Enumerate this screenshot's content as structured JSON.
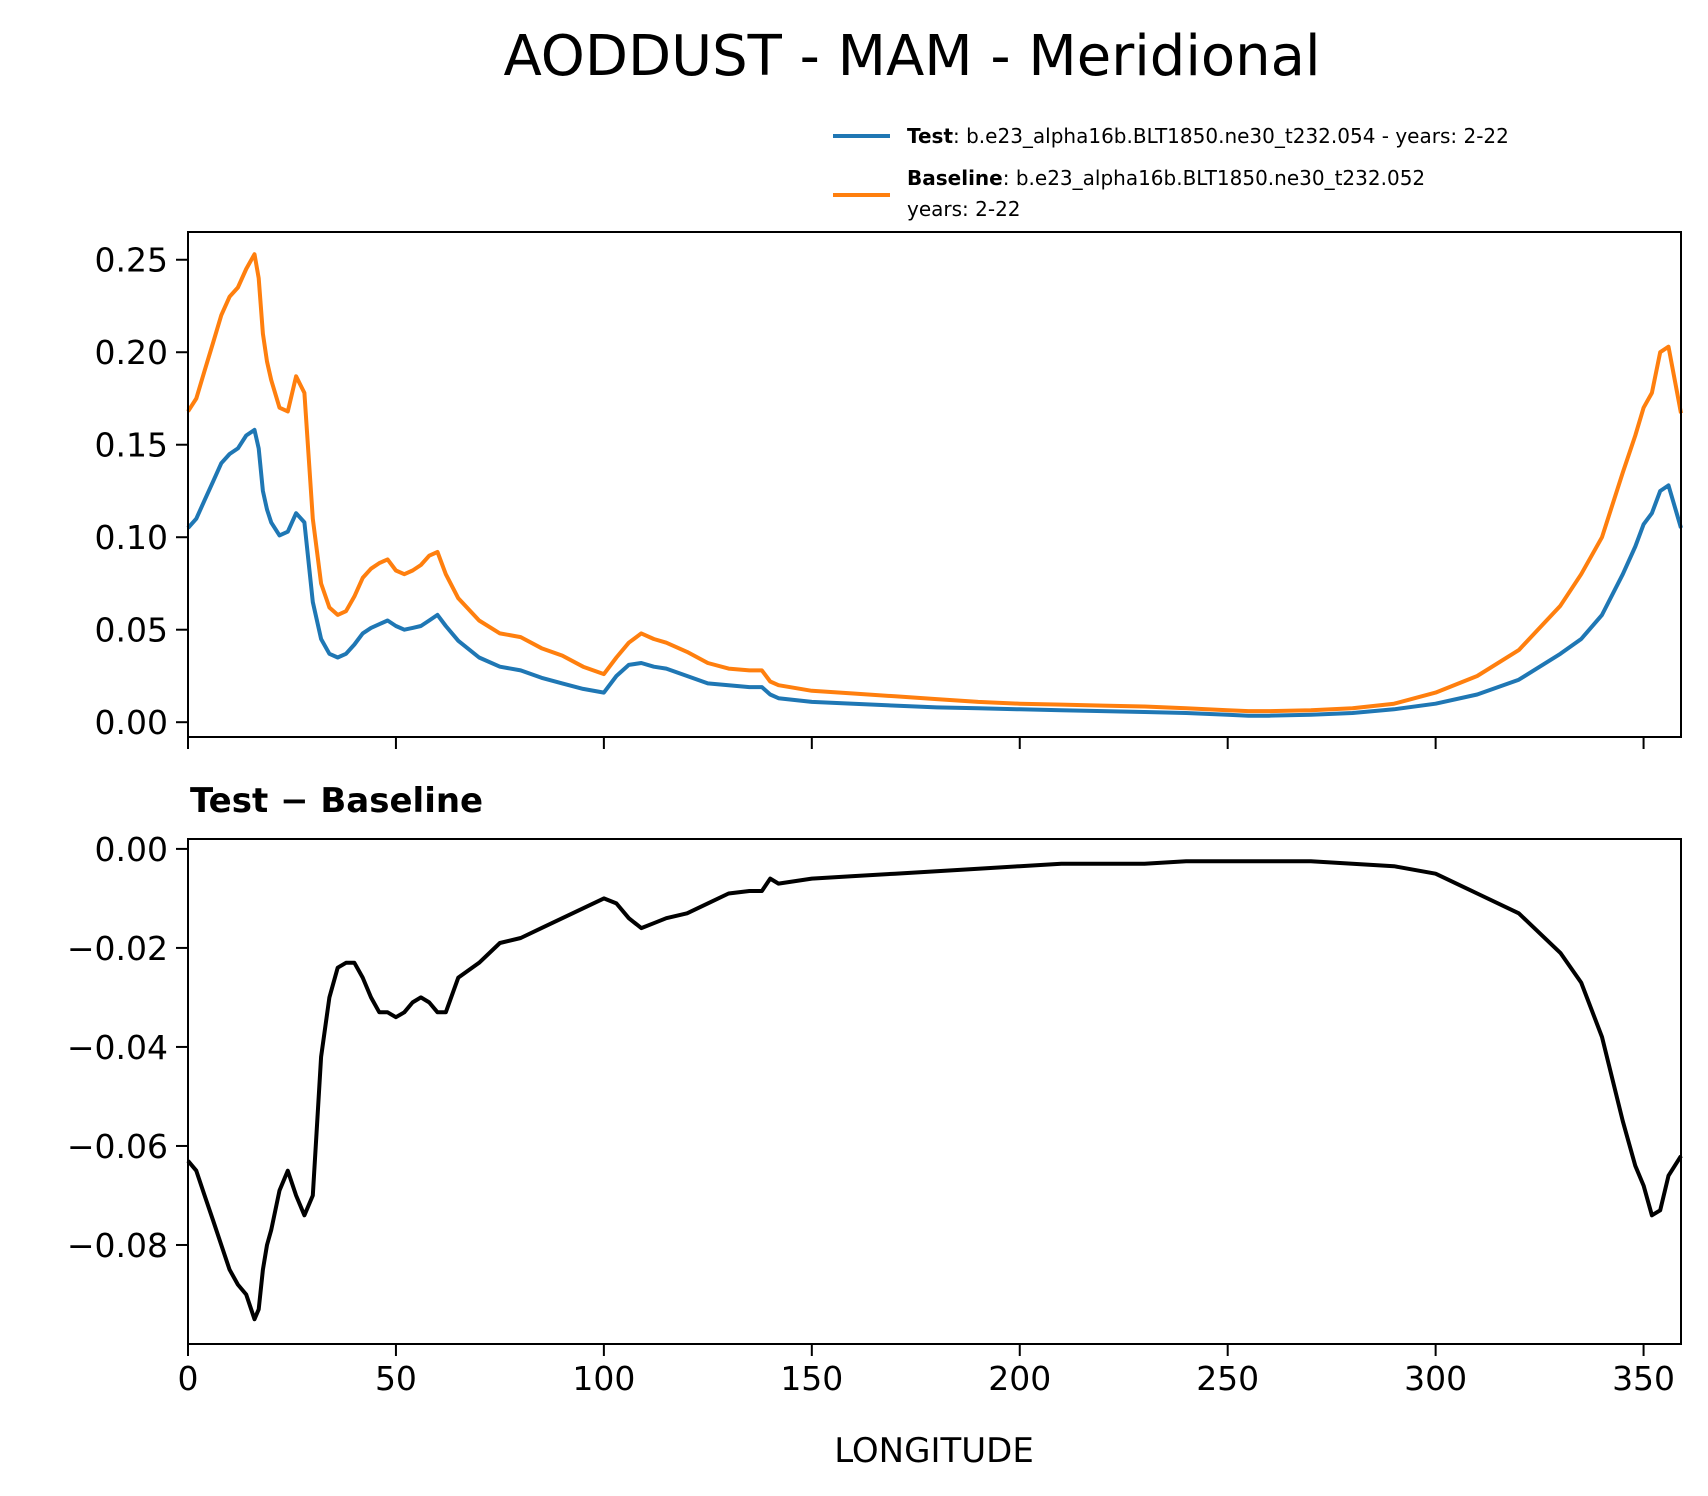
{
  "title": "AODDUST - MAM - Meridional",
  "legend": {
    "test": {
      "label": "Test",
      "text": ": b.e23_alpha16b.BLT1850.ne30_t232.054 - years: 2-22",
      "color": "#1f77b4"
    },
    "baseline": {
      "label": "Baseline",
      "text": ": b.e23_alpha16b.BLT1850.ne30_t232.052",
      "text2": "years: 2-22",
      "color": "#ff7f0e"
    }
  },
  "diff_title": "Test − Baseline",
  "xlabel": "LONGITUDE",
  "chart_data": [
    {
      "type": "line",
      "xlim": [
        0,
        359
      ],
      "ylim": [
        -0.008,
        0.265
      ],
      "xticks": [
        0,
        50,
        100,
        150,
        200,
        250,
        300,
        350
      ],
      "yticks": [
        0.0,
        0.05,
        0.1,
        0.15,
        0.2,
        0.25
      ],
      "ytick_labels": [
        "0.00",
        "0.05",
        "0.10",
        "0.15",
        "0.20",
        "0.25"
      ],
      "x": [
        0,
        2,
        4,
        6,
        8,
        10,
        12,
        14,
        16,
        17,
        18,
        19,
        20,
        22,
        24,
        26,
        28,
        30,
        32,
        34,
        36,
        38,
        40,
        42,
        44,
        46,
        48,
        50,
        52,
        54,
        56,
        58,
        60,
        62,
        65,
        70,
        75,
        80,
        85,
        90,
        95,
        100,
        103,
        106,
        109,
        112,
        115,
        120,
        125,
        130,
        135,
        138,
        140,
        142,
        150,
        160,
        170,
        180,
        190,
        200,
        210,
        220,
        230,
        240,
        250,
        255,
        260,
        270,
        280,
        290,
        300,
        310,
        320,
        330,
        335,
        340,
        345,
        348,
        350,
        352,
        354,
        356,
        359
      ],
      "series": [
        {
          "name": "Test",
          "color": "#1f77b4",
          "values": [
            0.105,
            0.11,
            0.12,
            0.13,
            0.14,
            0.145,
            0.148,
            0.155,
            0.158,
            0.148,
            0.125,
            0.115,
            0.108,
            0.101,
            0.103,
            0.113,
            0.108,
            0.065,
            0.045,
            0.037,
            0.035,
            0.037,
            0.042,
            0.048,
            0.051,
            0.053,
            0.055,
            0.052,
            0.05,
            0.051,
            0.052,
            0.055,
            0.058,
            0.052,
            0.044,
            0.035,
            0.03,
            0.028,
            0.024,
            0.021,
            0.018,
            0.016,
            0.025,
            0.031,
            0.032,
            0.03,
            0.029,
            0.025,
            0.021,
            0.02,
            0.019,
            0.019,
            0.015,
            0.013,
            0.011,
            0.01,
            0.009,
            0.008,
            0.0075,
            0.007,
            0.0065,
            0.006,
            0.0055,
            0.005,
            0.004,
            0.0035,
            0.0035,
            0.004,
            0.005,
            0.007,
            0.01,
            0.015,
            0.023,
            0.037,
            0.045,
            0.058,
            0.08,
            0.095,
            0.107,
            0.113,
            0.125,
            0.128,
            0.105
          ]
        },
        {
          "name": "Baseline",
          "color": "#ff7f0e",
          "values": [
            0.168,
            0.175,
            0.19,
            0.205,
            0.22,
            0.23,
            0.235,
            0.245,
            0.253,
            0.24,
            0.21,
            0.195,
            0.185,
            0.17,
            0.168,
            0.187,
            0.178,
            0.11,
            0.075,
            0.062,
            0.058,
            0.06,
            0.068,
            0.078,
            0.083,
            0.086,
            0.088,
            0.082,
            0.08,
            0.082,
            0.085,
            0.09,
            0.092,
            0.08,
            0.067,
            0.055,
            0.048,
            0.046,
            0.04,
            0.036,
            0.03,
            0.026,
            0.035,
            0.043,
            0.048,
            0.045,
            0.043,
            0.038,
            0.032,
            0.029,
            0.028,
            0.028,
            0.022,
            0.02,
            0.017,
            0.0155,
            0.014,
            0.0125,
            0.011,
            0.01,
            0.0095,
            0.009,
            0.0085,
            0.0075,
            0.0065,
            0.006,
            0.006,
            0.0065,
            0.0075,
            0.01,
            0.016,
            0.025,
            0.039,
            0.063,
            0.08,
            0.1,
            0.135,
            0.155,
            0.17,
            0.178,
            0.2,
            0.203,
            0.167
          ]
        }
      ]
    },
    {
      "type": "line",
      "title": "Test − Baseline",
      "xlabel": "LONGITUDE",
      "xlim": [
        0,
        359
      ],
      "ylim": [
        -0.1,
        0.002
      ],
      "xticks": [
        0,
        50,
        100,
        150,
        200,
        250,
        300,
        350
      ],
      "yticks": [
        0.0,
        -0.02,
        -0.04,
        -0.06,
        -0.08
      ],
      "ytick_labels": [
        "0.00",
        "−0.02",
        "−0.04",
        "−0.06",
        "−0.08"
      ],
      "x": [
        0,
        2,
        4,
        6,
        8,
        10,
        12,
        14,
        16,
        17,
        18,
        19,
        20,
        22,
        24,
        26,
        28,
        30,
        32,
        34,
        36,
        38,
        40,
        42,
        44,
        46,
        48,
        50,
        52,
        54,
        56,
        58,
        60,
        62,
        65,
        70,
        75,
        80,
        85,
        90,
        95,
        100,
        103,
        106,
        109,
        112,
        115,
        120,
        125,
        130,
        135,
        138,
        140,
        142,
        150,
        160,
        170,
        180,
        190,
        200,
        210,
        220,
        230,
        240,
        250,
        255,
        260,
        270,
        280,
        290,
        300,
        310,
        320,
        330,
        335,
        340,
        345,
        348,
        350,
        352,
        354,
        356,
        359
      ],
      "series": [
        {
          "color": "#000000",
          "values": [
            -0.063,
            -0.065,
            -0.07,
            -0.075,
            -0.08,
            -0.085,
            -0.088,
            -0.09,
            -0.095,
            -0.093,
            -0.085,
            -0.08,
            -0.077,
            -0.069,
            -0.065,
            -0.07,
            -0.074,
            -0.07,
            -0.042,
            -0.03,
            -0.024,
            -0.023,
            -0.023,
            -0.026,
            -0.03,
            -0.033,
            -0.033,
            -0.034,
            -0.033,
            -0.031,
            -0.03,
            -0.031,
            -0.033,
            -0.033,
            -0.026,
            -0.023,
            -0.019,
            -0.018,
            -0.016,
            -0.014,
            -0.012,
            -0.01,
            -0.011,
            -0.014,
            -0.016,
            -0.015,
            -0.014,
            -0.013,
            -0.011,
            -0.009,
            -0.0085,
            -0.0085,
            -0.006,
            -0.007,
            -0.006,
            -0.0055,
            -0.005,
            -0.0045,
            -0.004,
            -0.0035,
            -0.003,
            -0.003,
            -0.003,
            -0.0025,
            -0.0025,
            -0.0025,
            -0.0025,
            -0.0025,
            -0.003,
            -0.0035,
            -0.005,
            -0.009,
            -0.013,
            -0.021,
            -0.027,
            -0.038,
            -0.055,
            -0.064,
            -0.068,
            -0.074,
            -0.073,
            -0.066,
            -0.062
          ]
        }
      ]
    }
  ]
}
